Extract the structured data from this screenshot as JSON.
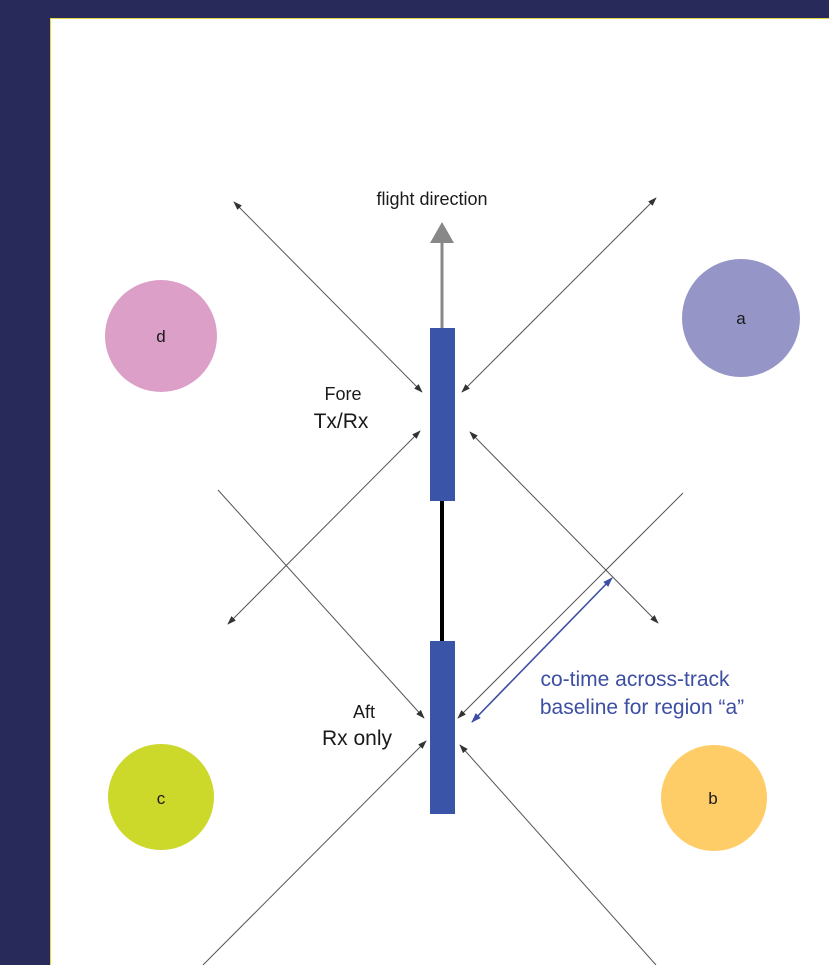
{
  "diagram": {
    "flight_direction_label": "flight direction",
    "fore": {
      "line1": "Fore",
      "line2": "Tx/Rx"
    },
    "aft": {
      "line1": "Aft",
      "line2": "Rx only"
    },
    "baseline": {
      "line1": "co-time across-track",
      "line2": "baseline for region “a”"
    },
    "regions": [
      {
        "id": "a",
        "label": "a",
        "color": "#9595c8"
      },
      {
        "id": "b",
        "label": "b",
        "color": "#fecd67"
      },
      {
        "id": "c",
        "label": "c",
        "color": "#ccd82a"
      },
      {
        "id": "d",
        "label": "d",
        "color": "#dca0c8"
      }
    ],
    "colors": {
      "antenna": "#3a55a8",
      "boom": "#000000",
      "arrow": "#555555",
      "baseline": "#3d4fa3",
      "background": "#282a5a",
      "border": "#e8d64a"
    }
  }
}
